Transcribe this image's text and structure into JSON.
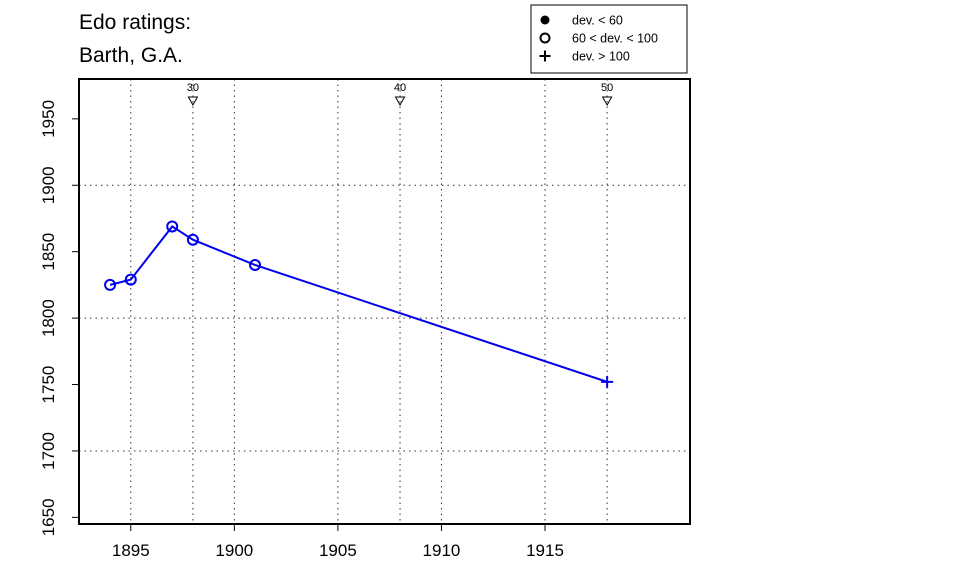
{
  "chart_data": {
    "type": "line",
    "title_lines": [
      "Edo ratings:",
      "Barth, G.A."
    ],
    "xlabel": "",
    "ylabel": "",
    "xlim": [
      1892.5,
      1922
    ],
    "ylim": [
      1645,
      1980
    ],
    "x_ticks": [
      1895,
      1900,
      1905,
      1910,
      1915
    ],
    "y_ticks": [
      1650,
      1700,
      1750,
      1800,
      1850,
      1900,
      1950
    ],
    "x_grid": [
      1895,
      1900,
      1905,
      1910,
      1915
    ],
    "x_grid_minor": [
      1898,
      1908,
      1918
    ],
    "y_grid": [
      1700,
      1800,
      1900
    ],
    "grid": true,
    "line_color": "#0000ee",
    "series": [
      {
        "points": [
          {
            "x": 1894,
            "y": 1825,
            "marker": "open-circle"
          },
          {
            "x": 1895,
            "y": 1829,
            "marker": "open-circle"
          },
          {
            "x": 1897,
            "y": 1869,
            "marker": "open-circle"
          },
          {
            "x": 1898,
            "y": 1859,
            "marker": "open-circle"
          },
          {
            "x": 1901,
            "y": 1840,
            "marker": "open-circle"
          },
          {
            "x": 1918,
            "y": 1752,
            "marker": "plus"
          }
        ]
      }
    ],
    "age_markers": [
      {
        "x": 1898,
        "label": "30"
      },
      {
        "x": 1908,
        "label": "40"
      },
      {
        "x": 1918,
        "label": "50"
      }
    ],
    "legend": {
      "placement": "top-right",
      "entries": [
        {
          "symbol": "filled-circle",
          "label": "dev. < 60"
        },
        {
          "symbol": "open-circle",
          "label": "60 < dev. < 100"
        },
        {
          "symbol": "plus",
          "label": "dev. > 100"
        }
      ]
    }
  }
}
